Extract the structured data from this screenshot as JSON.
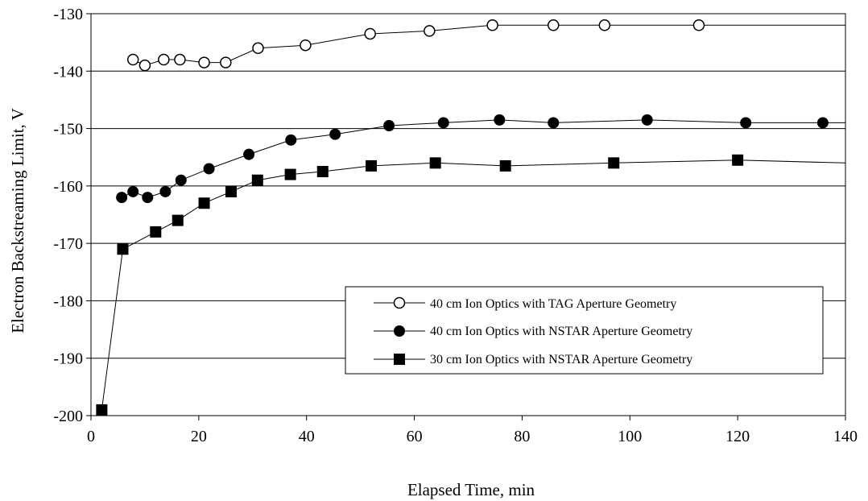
{
  "chart_data": {
    "type": "line",
    "xlabel": "Elapsed Time, min",
    "ylabel": "Electron Backstreaming Limit, V",
    "xlim": [
      0,
      140
    ],
    "ylim": [
      -200,
      -130
    ],
    "xticks": [
      0,
      20,
      40,
      60,
      80,
      100,
      120,
      140
    ],
    "yticks": [
      -200,
      -190,
      -180,
      -170,
      -160,
      -150,
      -140,
      -130
    ],
    "x_tick_labels": [
      "0",
      "20",
      "40",
      "60",
      "80",
      "100",
      "120",
      "140"
    ],
    "y_tick_labels": [
      "-200",
      "-190",
      "-180",
      "-170",
      "-160",
      "-150",
      "-140",
      "-130"
    ],
    "grid": "horizontal",
    "legend_position": "lower-right",
    "series": [
      {
        "name": "40 cm Ion Optics with TAG Aperture Geometry",
        "marker": "open-circle",
        "x": [
          7.8,
          10.0,
          13.5,
          16.5,
          21.0,
          25.0,
          31.0,
          39.8,
          51.8,
          62.8,
          74.5,
          85.8,
          95.3,
          112.8,
          140
        ],
        "y": [
          -138,
          -139,
          -138,
          -138,
          -138.5,
          -138.5,
          -136,
          -135.5,
          -133.5,
          -133,
          -132,
          -132,
          -132,
          -132,
          -132
        ],
        "markers_shown": 14
      },
      {
        "name": "40 cm Ion Optics with NSTAR Aperture Geometry",
        "marker": "filled-circle",
        "x": [
          5.7,
          7.8,
          10.5,
          13.8,
          16.7,
          21.9,
          29.3,
          37.1,
          45.3,
          55.3,
          65.4,
          75.8,
          85.8,
          103.2,
          121.5,
          135.8,
          140
        ],
        "y": [
          -162,
          -161,
          -162,
          -161,
          -159,
          -157,
          -154.5,
          -152,
          -151,
          -149.5,
          -149,
          -148.5,
          -149,
          -148.5,
          -149,
          -149,
          -149
        ],
        "markers_shown": 16
      },
      {
        "name": "30 cm Ion Optics with NSTAR Aperture Geometry",
        "marker": "filled-square",
        "x": [
          2.0,
          5.9,
          12.0,
          16.1,
          21.0,
          26.0,
          30.9,
          37.0,
          43.0,
          52.0,
          63.9,
          76.9,
          97.0,
          120.0,
          140
        ],
        "y": [
          -199,
          -171,
          -168,
          -166,
          -163,
          -161,
          -159,
          -158,
          -157.5,
          -156.5,
          -156,
          -156.5,
          -156,
          -155.5,
          -156
        ],
        "markers_shown": 14
      }
    ]
  }
}
